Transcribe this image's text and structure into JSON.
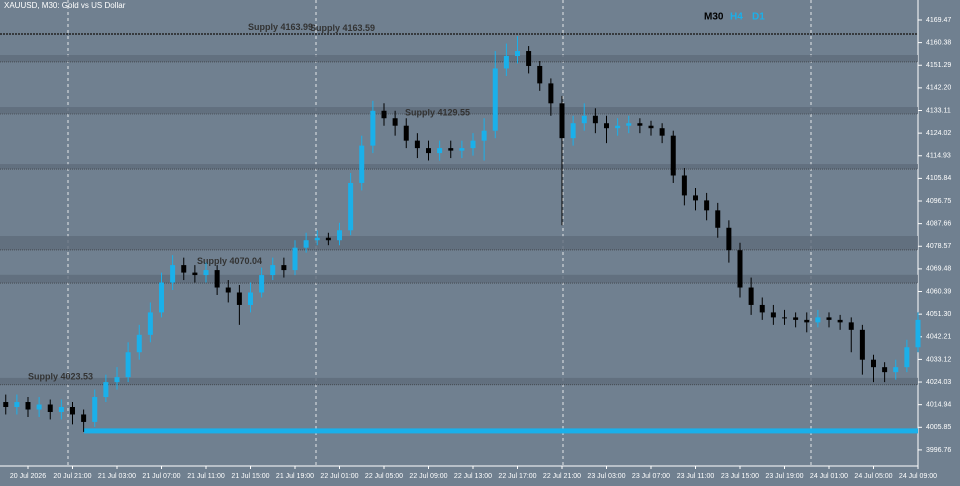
{
  "chart_data": {
    "type": "candlestick",
    "title": "XAUUSD, M30: Gold vs US Dollar",
    "timeframes": [
      "M30",
      "H4",
      "D1"
    ],
    "up_color": "#1ab0ea",
    "down_color": "#000000",
    "ylim": [
      3990.3,
      4177.5
    ],
    "yticks": [
      4169.47,
      4160.38,
      4151.29,
      {
        "value": 4142.2,
        "label": "4142.20"
      },
      4133.11,
      4124.02,
      4114.93,
      4105.84,
      4096.75,
      4087.66,
      4078.57,
      4069.48,
      4060.39,
      {
        "value": 4051.3,
        "label": "4051.30"
      },
      4042.21,
      4033.12,
      4024.03,
      4014.94,
      4005.85,
      3996.76
    ],
    "categories": [
      null,
      null,
      "20 Jul 2026",
      null,
      null,
      null,
      "20 Jul 21:00",
      null,
      null,
      null,
      "21 Jul 03:00",
      null,
      null,
      null,
      "21 Jul 07:00",
      null,
      null,
      null,
      "21 Jul 11:00",
      null,
      null,
      null,
      "21 Jul 15:00",
      null,
      null,
      null,
      "21 Jul 19:00",
      null,
      null,
      null,
      "22 Jul 01:00",
      null,
      null,
      null,
      "22 Jul 05:00",
      null,
      null,
      null,
      "22 Jul 09:00",
      null,
      null,
      null,
      "22 Jul 13:00",
      null,
      null,
      null,
      "22 Jul 17:00",
      null,
      null,
      null,
      "22 Jul 21:00",
      null,
      null,
      null,
      "23 Jul 03:00",
      null,
      null,
      null,
      "23 Jul 07:00",
      null,
      null,
      null,
      "23 Jul 11:00",
      null,
      null,
      null,
      "23 Jul 15:00",
      null,
      null,
      null,
      "23 Jul 19:00",
      null,
      null,
      null,
      "24 Jul 01:00",
      null,
      null,
      null,
      "24 Jul 05:00",
      null,
      null,
      null,
      "24 Jul 09:00"
    ],
    "open": [
      4016,
      4014,
      4016,
      4013,
      4015,
      4012,
      4014,
      4011,
      4008,
      4018,
      4024,
      4026,
      4036,
      4043,
      4052,
      4064,
      4071,
      4068,
      4067,
      4069,
      4062,
      4060,
      4055,
      4060,
      4067,
      4071,
      4069,
      4078,
      4081,
      4082,
      4081,
      4085,
      4104,
      4119,
      4133,
      4130,
      4127,
      4121,
      4118,
      4116,
      4118,
      4117,
      4118,
      4121,
      4125,
      4150,
      4155,
      4157,
      4151,
      4144,
      4136,
      4122,
      4128,
      4131,
      4128,
      4126,
      4127,
      4128,
      4127,
      4126,
      4123,
      4107,
      4099,
      4097,
      4093,
      4086,
      4077,
      4062,
      4055,
      4052,
      4050,
      4050,
      4049,
      4048,
      4050,
      4049,
      4048,
      4045,
      4033,
      4030,
      4028,
      4030,
      4038
    ],
    "high": [
      4019,
      4019,
      4018,
      4018,
      4017,
      4017,
      4016,
      4013,
      4021,
      4027,
      4030,
      4040,
      4047,
      4056,
      4068,
      4075,
      4074,
      4071,
      4072,
      4071,
      4065,
      4063,
      4064,
      4070,
      4074,
      4074,
      4081,
      4084,
      4085,
      4084,
      4088,
      4108,
      4123,
      4137,
      4136,
      4133,
      4130,
      4124,
      4121,
      4121,
      4121,
      4121,
      4124,
      4130,
      4157,
      4160,
      4163,
      4159,
      4153,
      4146,
      4139,
      4131,
      4136,
      4134,
      4131,
      4130,
      4131,
      4130,
      4129,
      4128,
      4125,
      4110,
      4102,
      4100,
      4096,
      4089,
      4080,
      4066,
      4058,
      4055,
      4053,
      4052,
      4052,
      4053,
      4052,
      4051,
      4050,
      4047,
      4035,
      4032,
      4033,
      4041,
      4052
    ],
    "low": [
      4011,
      4011,
      4010,
      4010,
      4009,
      4009,
      4007,
      4004,
      4006,
      4016,
      4021,
      4024,
      4033,
      4040,
      4050,
      4061,
      4065,
      4064,
      4064,
      4059,
      4056,
      4047,
      4052,
      4058,
      4065,
      4066,
      4067,
      4076,
      4079,
      4079,
      4079,
      4083,
      4101,
      4116,
      4127,
      4123,
      4118,
      4114,
      4113,
      4113,
      4114,
      4114,
      4115,
      4113,
      4122,
      4147,
      4152,
      4148,
      4141,
      4131,
      4087,
      4119,
      4125,
      4124,
      4120,
      4123,
      4124,
      4124,
      4123,
      4120,
      4104,
      4095,
      4093,
      4089,
      4082,
      4072,
      4058,
      4051,
      4049,
      4047,
      4047,
      4046,
      4044,
      4046,
      4046,
      4045,
      4036,
      4027,
      4024,
      4024,
      4025,
      4028,
      4036
    ],
    "close": [
      4014,
      4016,
      4013,
      4015,
      4012,
      4014,
      4011,
      4008,
      4018,
      4024,
      4026,
      4036,
      4043,
      4052,
      4064,
      4071,
      4068,
      4067,
      4069,
      4062,
      4060,
      4055,
      4060,
      4067,
      4071,
      4069,
      4078,
      4081,
      4082,
      4081,
      4085,
      4104,
      4119,
      4133,
      4130,
      4127,
      4121,
      4118,
      4116,
      4118,
      4117,
      4118,
      4121,
      4125,
      4150,
      4155,
      4157,
      4151,
      4144,
      4136,
      4122,
      4128,
      4131,
      4128,
      4126,
      4127,
      4128,
      4127,
      4126,
      4123,
      4107,
      4099,
      4097,
      4093,
      4086,
      4077,
      4062,
      4055,
      4052,
      4050,
      4050,
      4049,
      4048,
      4050,
      4049,
      4048,
      4045,
      4033,
      4030,
      4028,
      4030,
      4038,
      4049
    ],
    "zones": [
      [
        4152.6,
        4155.4
      ],
      [
        4131.7,
        4134.5
      ],
      [
        4109.6,
        4111.6
      ],
      [
        4077.1,
        4082.7
      ],
      [
        4063.8,
        4067.1
      ],
      [
        4022.9,
        4025.7
      ]
    ],
    "annotations": [
      {
        "label": "Supply 4163.99",
        "value": 4163.99
      },
      {
        "label": "Supply 4163.59",
        "value": 4163.59
      },
      {
        "label": "Supply 4129.55",
        "value": 4129.55
      },
      {
        "label": "Supply 4070.04",
        "value": 4070.04
      },
      {
        "label": "Supply 4023.53",
        "value": 4023.53
      }
    ],
    "level": 4004.4,
    "level_color": "#1ab0ea"
  }
}
